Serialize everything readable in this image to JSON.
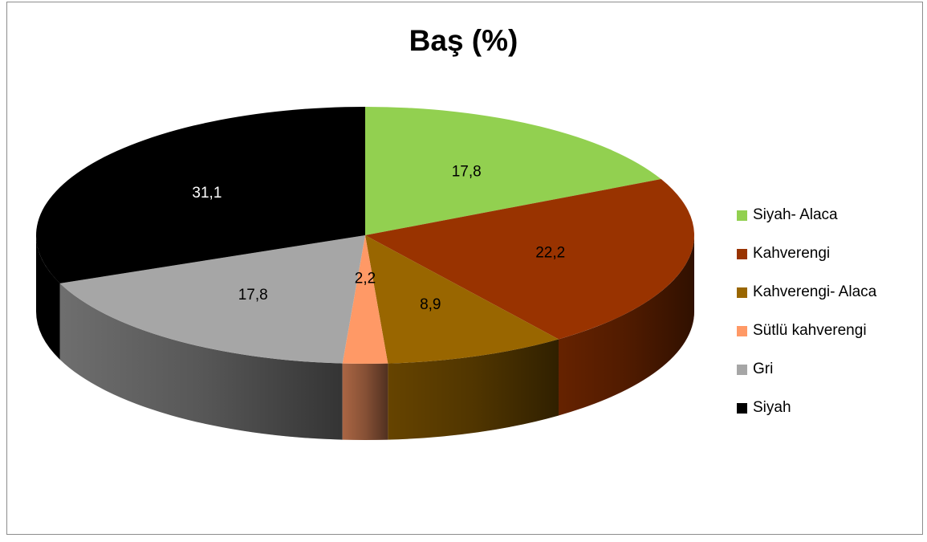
{
  "chart_data": {
    "type": "pie",
    "title": "Baş (%)",
    "categories": [
      "Siyah- Alaca",
      "Kahverengi",
      "Kahverengi- Alaca",
      "Sütlü kahverengi",
      "Gri",
      "Siyah"
    ],
    "values": [
      17.8,
      22.2,
      8.9,
      2.2,
      17.8,
      31.1
    ],
    "value_labels": [
      "17,8",
      "22,2",
      "8,9",
      "2,2",
      "17,8",
      "31,1"
    ],
    "colors": [
      "#92d050",
      "#993300",
      "#996600",
      "#ff9966",
      "#a6a6a6",
      "#000000"
    ],
    "legend_position": "right",
    "style": "3d"
  }
}
